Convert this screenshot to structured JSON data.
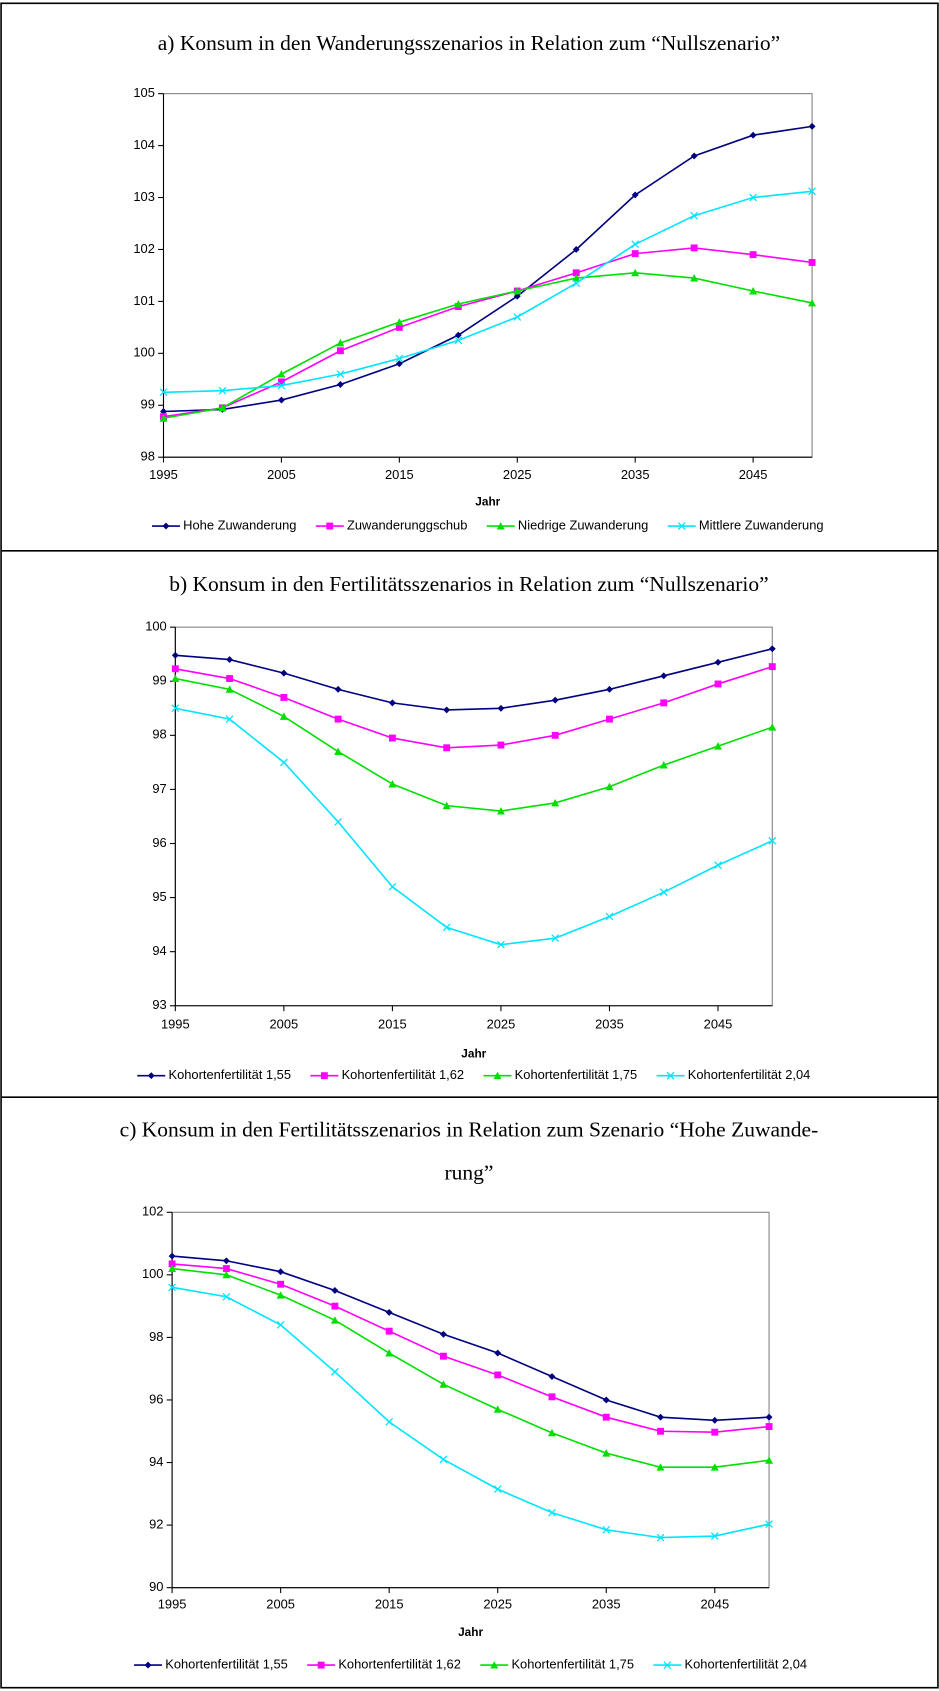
{
  "chart_data": [
    {
      "type": "line",
      "title": "a) Konsum in den Wanderungsszenarios in Relation zum “Nullszenario”",
      "x_label": "Jahr",
      "x": [
        1995,
        2000,
        2005,
        2010,
        2015,
        2020,
        2025,
        2030,
        2035,
        2040,
        2045,
        2050
      ],
      "xlim": [
        1995,
        2050
      ],
      "xticks": [
        1995,
        2005,
        2015,
        2025,
        2035,
        2045
      ],
      "ylim": [
        98,
        105
      ],
      "yticks": [
        98,
        99,
        100,
        101,
        102,
        103,
        104,
        105
      ],
      "legend": "bottom",
      "series": [
        {
          "name": "Hohe Zuwanderung",
          "color": "#000080",
          "marker": "diamond",
          "values": [
            98.88,
            98.92,
            99.1,
            99.4,
            99.8,
            100.35,
            101.1,
            102.0,
            103.05,
            103.8,
            104.2,
            104.37
          ]
        },
        {
          "name": "Zuwanderunggschub",
          "color": "#ff00ff",
          "marker": "square",
          "values": [
            98.78,
            98.95,
            99.45,
            100.05,
            100.5,
            100.9,
            101.2,
            101.55,
            101.92,
            102.03,
            101.9,
            101.75
          ]
        },
        {
          "name": "Niedrige Zuwanderung",
          "color": "#00e000",
          "marker": "triangle",
          "values": [
            98.75,
            98.95,
            99.6,
            100.2,
            100.6,
            100.95,
            101.2,
            101.45,
            101.55,
            101.45,
            101.2,
            100.97
          ]
        },
        {
          "name": "Mittlere Zuwanderung",
          "color": "#00e5ff",
          "marker": "x",
          "values": [
            99.25,
            99.28,
            99.38,
            99.6,
            99.9,
            100.25,
            100.7,
            101.35,
            102.1,
            102.65,
            103.0,
            103.12
          ]
        }
      ]
    },
    {
      "type": "line",
      "title": "b) Konsum in den Fertilitätsszenarios in Relation zum “Nullszenario”",
      "x_label": "Jahr",
      "x": [
        1995,
        2000,
        2005,
        2010,
        2015,
        2020,
        2025,
        2030,
        2035,
        2040,
        2045,
        2050
      ],
      "xlim": [
        1995,
        2050
      ],
      "xticks": [
        1995,
        2005,
        2015,
        2025,
        2035,
        2045
      ],
      "ylim": [
        93,
        100
      ],
      "yticks": [
        93,
        94,
        95,
        96,
        97,
        98,
        99,
        100
      ],
      "legend": "bottom",
      "series": [
        {
          "name": "Kohortenfertilität 1,55",
          "color": "#000080",
          "marker": "diamond",
          "values": [
            99.48,
            99.4,
            99.15,
            98.85,
            98.6,
            98.47,
            98.5,
            98.65,
            98.85,
            99.1,
            99.35,
            99.6
          ]
        },
        {
          "name": "Kohortenfertilität 1,62",
          "color": "#ff00ff",
          "marker": "square",
          "values": [
            99.23,
            99.05,
            98.7,
            98.3,
            97.95,
            97.77,
            97.82,
            98.0,
            98.3,
            98.6,
            98.95,
            99.27
          ]
        },
        {
          "name": "Kohortenfertilität 1,75",
          "color": "#00e000",
          "marker": "triangle",
          "values": [
            99.05,
            98.85,
            98.35,
            97.7,
            97.1,
            96.7,
            96.6,
            96.75,
            97.05,
            97.45,
            97.8,
            98.15
          ]
        },
        {
          "name": "Kohortenfertilität 2,04",
          "color": "#00e5ff",
          "marker": "x",
          "values": [
            98.5,
            98.3,
            97.5,
            96.4,
            95.2,
            94.45,
            94.13,
            94.25,
            94.65,
            95.1,
            95.6,
            96.05
          ]
        }
      ]
    },
    {
      "type": "line",
      "title": [
        "c) Konsum in den Fertilitätsszenarios in Relation zum Szenario “Hohe Zuwande-",
        "rung”"
      ],
      "x_label": "Jahr",
      "x": [
        1995,
        2000,
        2005,
        2010,
        2015,
        2020,
        2025,
        2030,
        2035,
        2040,
        2045,
        2050
      ],
      "xlim": [
        1995,
        2050
      ],
      "xticks": [
        1995,
        2005,
        2015,
        2025,
        2035,
        2045
      ],
      "ylim": [
        90,
        102
      ],
      "yticks": [
        90,
        92,
        94,
        96,
        98,
        100,
        102
      ],
      "legend": "bottom",
      "series": [
        {
          "name": "Kohortenfertilität 1,55",
          "color": "#000080",
          "marker": "diamond",
          "values": [
            100.6,
            100.45,
            100.1,
            99.5,
            98.8,
            98.1,
            97.5,
            96.75,
            96.0,
            95.45,
            95.35,
            95.45
          ]
        },
        {
          "name": "Kohortenfertilität 1,62",
          "color": "#ff00ff",
          "marker": "square",
          "values": [
            100.35,
            100.2,
            99.7,
            99.0,
            98.2,
            97.4,
            96.8,
            96.1,
            95.45,
            95.0,
            94.97,
            95.15
          ]
        },
        {
          "name": "Kohortenfertilität 1,75",
          "color": "#00e000",
          "marker": "triangle",
          "values": [
            100.2,
            100.0,
            99.35,
            98.55,
            97.5,
            96.5,
            95.7,
            94.95,
            94.3,
            93.85,
            93.85,
            94.07
          ]
        },
        {
          "name": "Kohortenfertilität 2,04",
          "color": "#00e5ff",
          "marker": "x",
          "values": [
            99.6,
            99.3,
            98.4,
            96.9,
            95.3,
            94.1,
            93.15,
            92.4,
            91.85,
            91.6,
            91.65,
            92.03
          ]
        }
      ]
    }
  ]
}
